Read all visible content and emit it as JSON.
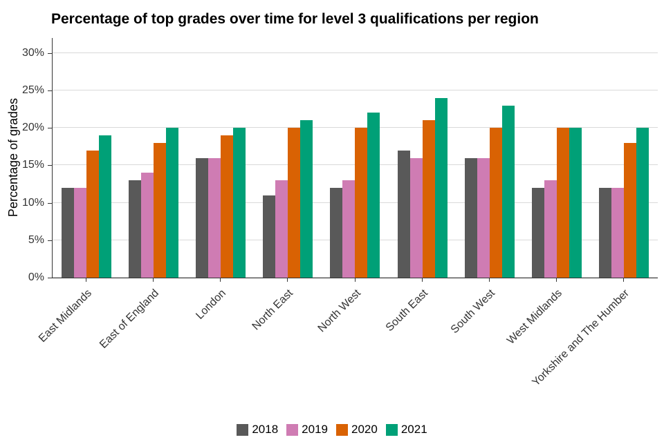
{
  "chart_data": {
    "type": "bar",
    "title": "Percentage of top grades over time for level 3 qualifications per region",
    "xlabel": "",
    "ylabel": "Percentage of grades",
    "ylim": [
      0,
      30
    ],
    "yticks": [
      0,
      5,
      10,
      15,
      20,
      25,
      30
    ],
    "ytick_suffix": "%",
    "grid": "horizontal-major",
    "legend_position": "bottom-center",
    "categories": [
      "East Midlands",
      "East of England",
      "London",
      "North East",
      "North West",
      "South East",
      "South West",
      "West Midlands",
      "Yorkshire and The Humber"
    ],
    "series": [
      {
        "name": "2018",
        "color": "#595959",
        "values": [
          12,
          13,
          16,
          11,
          12,
          17,
          16,
          12,
          12
        ]
      },
      {
        "name": "2019",
        "color": "#CF7CB3",
        "values": [
          12,
          14,
          16,
          13,
          13,
          16,
          16,
          13,
          12
        ]
      },
      {
        "name": "2020",
        "color": "#D96203",
        "values": [
          17,
          18,
          19,
          20,
          20,
          21,
          20,
          20,
          18
        ]
      },
      {
        "name": "2021",
        "color": "#00A077",
        "values": [
          19,
          20,
          20,
          21,
          22,
          24,
          23,
          20,
          20
        ]
      }
    ]
  }
}
